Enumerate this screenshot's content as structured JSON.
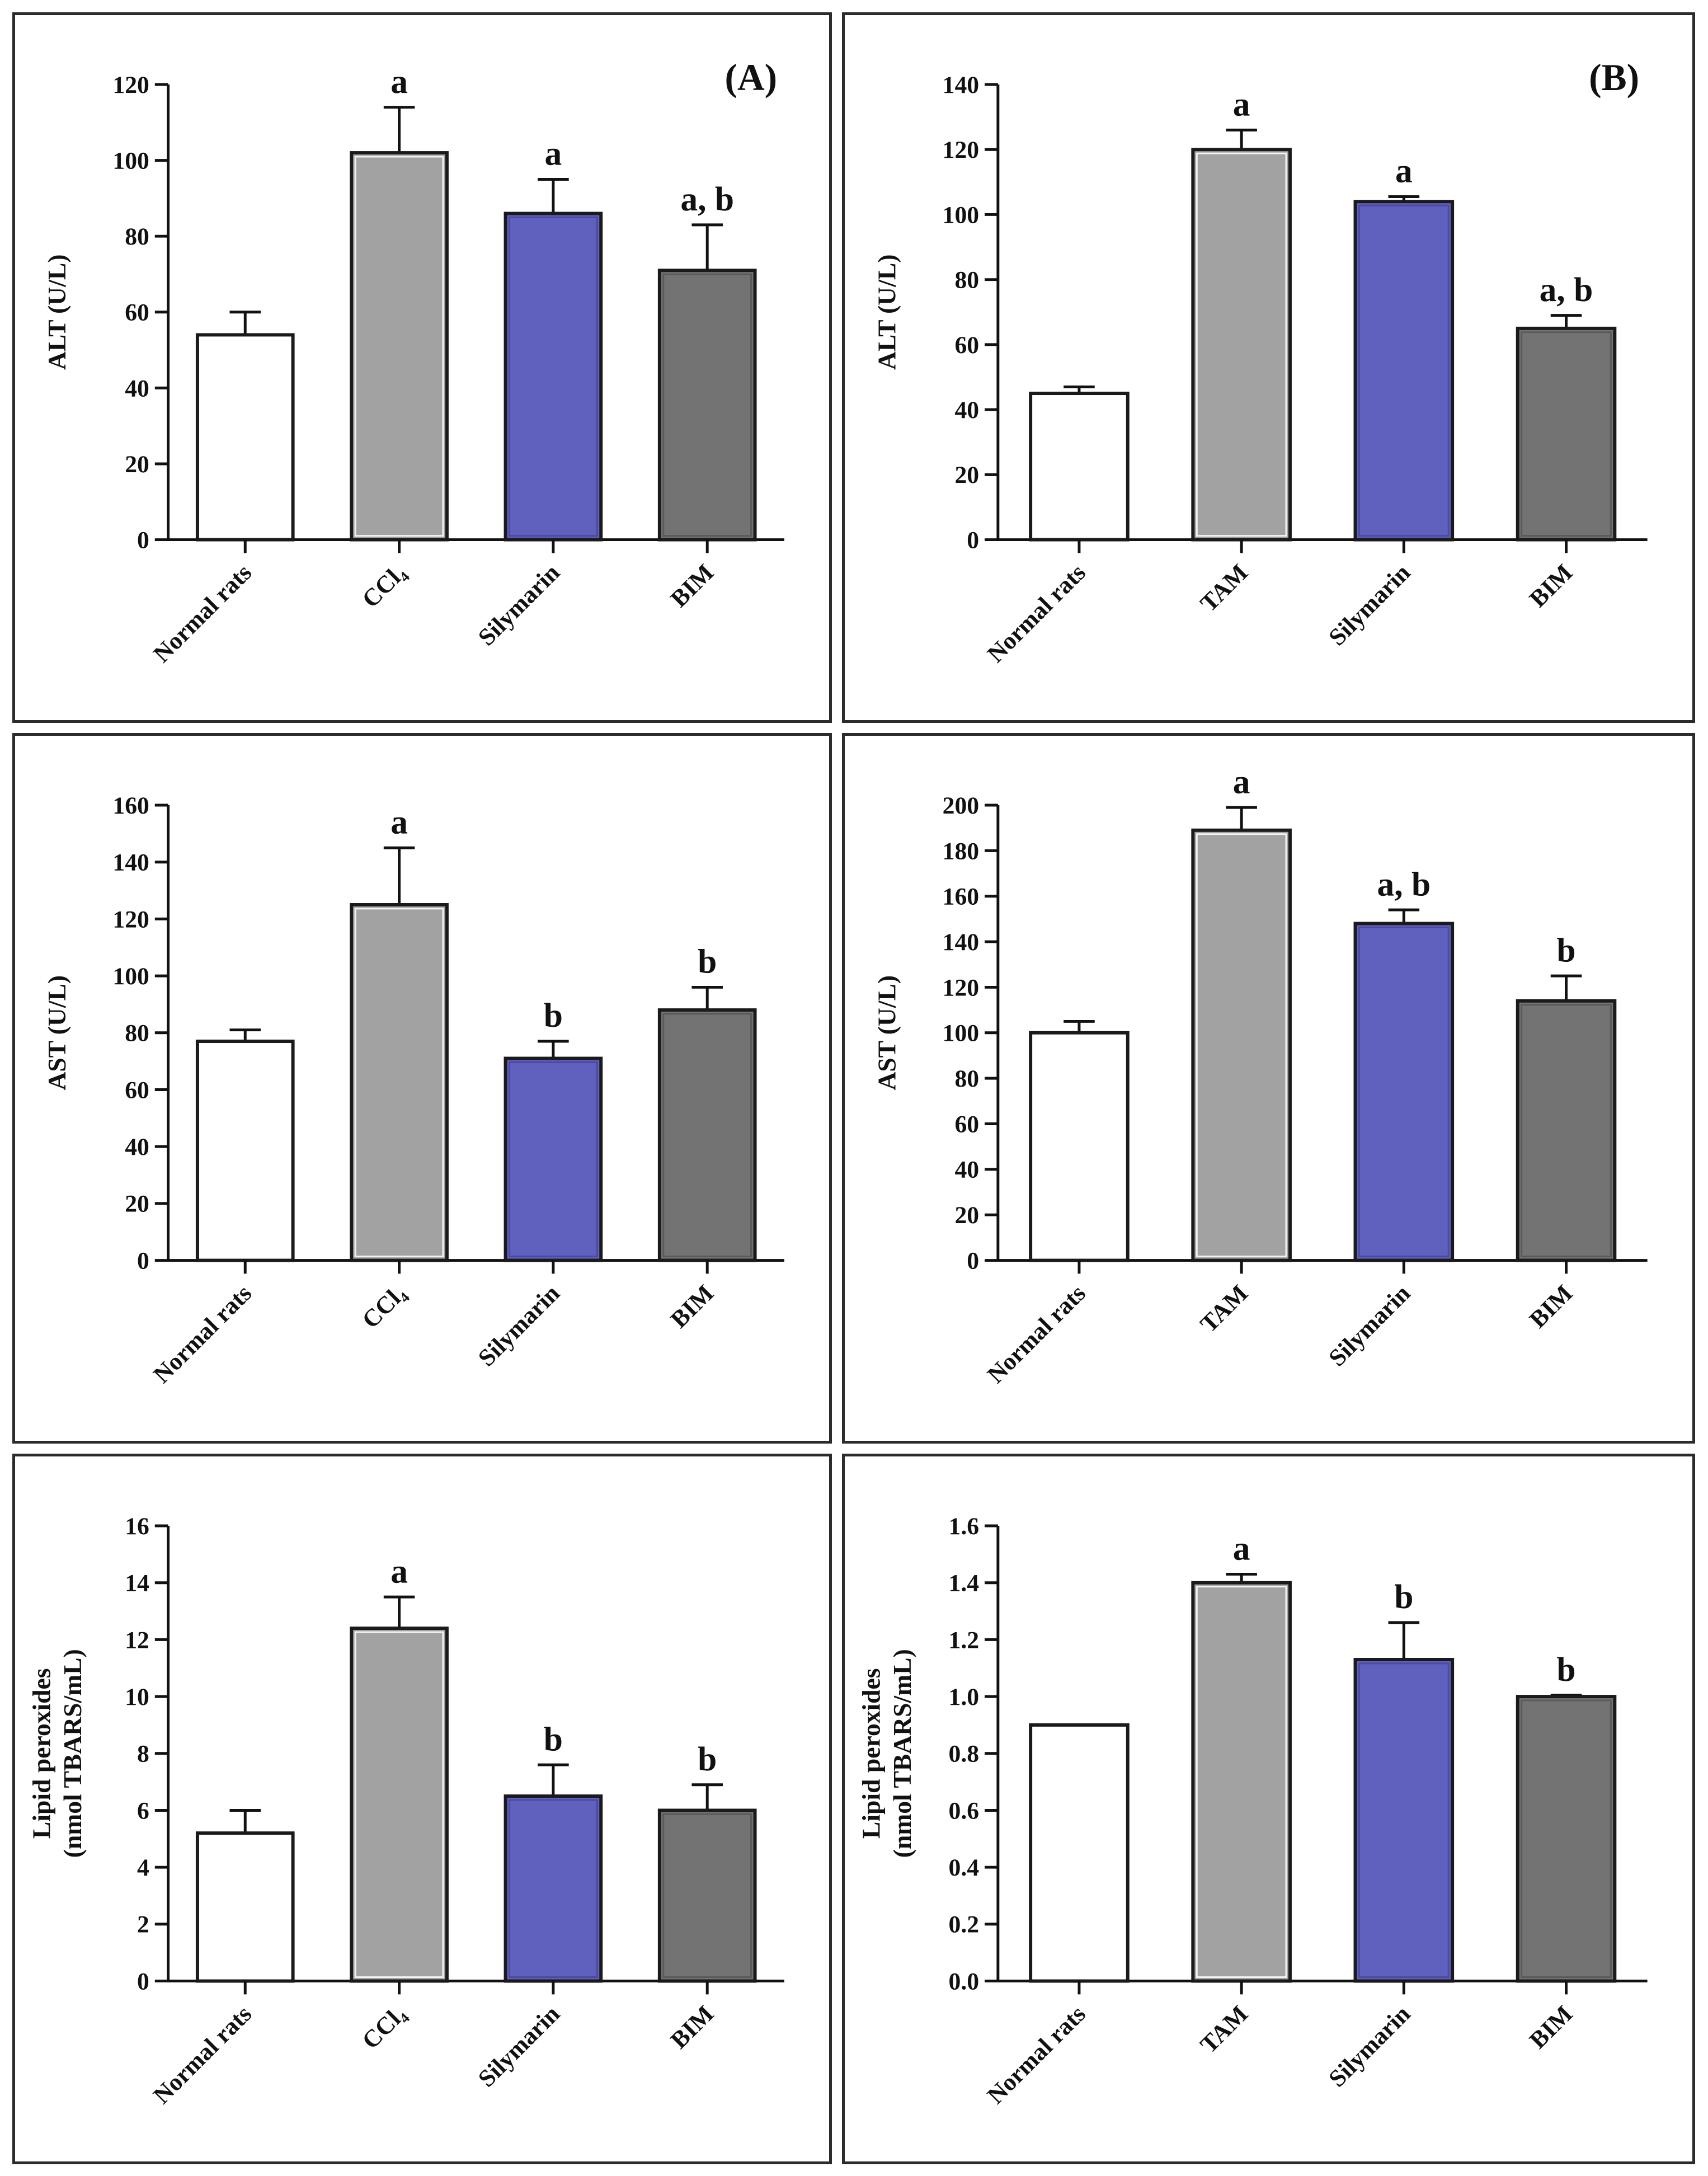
{
  "colors": {
    "normal": "#ffffff",
    "treatment": "#a2a2a2",
    "silymarin": "#6061be",
    "bim": "#737373",
    "axis": "#111111"
  },
  "chart_data": [
    {
      "id": "alt-ccl4",
      "type": "bar",
      "panel_label": "(A)",
      "ylabel": [
        "ALT (U/L)"
      ],
      "categories": [
        "Normal rats",
        "CCl₄",
        "Silymarin",
        "BIM"
      ],
      "values": [
        54,
        102,
        86,
        71
      ],
      "errors": [
        6,
        12,
        9,
        12
      ],
      "annotations": [
        "",
        "a",
        "a",
        "a, b"
      ],
      "ylim": [
        0,
        120
      ],
      "ticks": [
        0,
        20,
        40,
        60,
        80,
        100,
        120
      ],
      "decimals": 0
    },
    {
      "id": "alt-tam",
      "type": "bar",
      "panel_label": "(B)",
      "ylabel": [
        "ALT  (U/L)"
      ],
      "categories": [
        "Normal rats",
        "TAM",
        "Silymarin",
        "BIM"
      ],
      "values": [
        45,
        120,
        104,
        65
      ],
      "errors": [
        2,
        6,
        1.5,
        4
      ],
      "annotations": [
        "",
        "a",
        "a",
        "a, b"
      ],
      "ylim": [
        0,
        140
      ],
      "ticks": [
        0,
        20,
        40,
        60,
        80,
        100,
        120,
        140
      ],
      "decimals": 0
    },
    {
      "id": "ast-ccl4",
      "type": "bar",
      "panel_label": "",
      "ylabel": [
        "AST  (U/L)"
      ],
      "categories": [
        "Normal rats",
        "CCl₄",
        "Silymarin",
        "BIM"
      ],
      "values": [
        77,
        125,
        71,
        88
      ],
      "errors": [
        4,
        20,
        6,
        8
      ],
      "annotations": [
        "",
        "a",
        "b",
        "b"
      ],
      "ylim": [
        0,
        160
      ],
      "ticks": [
        0,
        20,
        40,
        60,
        80,
        100,
        120,
        140,
        160
      ],
      "decimals": 0
    },
    {
      "id": "ast-tam",
      "type": "bar",
      "panel_label": "",
      "ylabel": [
        "AST  (U/L)"
      ],
      "categories": [
        "Normal rats",
        "TAM",
        "Silymarin",
        "BIM"
      ],
      "values": [
        100,
        189,
        148,
        114
      ],
      "errors": [
        5,
        10,
        6,
        11
      ],
      "annotations": [
        "",
        "a",
        "a, b",
        "b"
      ],
      "ylim": [
        0,
        200
      ],
      "ticks": [
        0,
        20,
        40,
        60,
        80,
        100,
        120,
        140,
        160,
        180,
        200
      ],
      "decimals": 0
    },
    {
      "id": "lpo-ccl4",
      "type": "bar",
      "panel_label": "",
      "ylabel": [
        "Lipid peroxides",
        "(nmol TBARS/mL)"
      ],
      "categories": [
        "Normal rats",
        "CCl₄",
        "Silymarin",
        "BIM"
      ],
      "values": [
        5.2,
        12.4,
        6.5,
        6.0
      ],
      "errors": [
        0.8,
        1.1,
        1.1,
        0.9
      ],
      "annotations": [
        "",
        "a",
        "b",
        "b"
      ],
      "ylim": [
        0,
        16
      ],
      "ticks": [
        0,
        2,
        4,
        6,
        8,
        10,
        12,
        14,
        16
      ],
      "decimals": 0
    },
    {
      "id": "lpo-tam",
      "type": "bar",
      "panel_label": "",
      "ylabel": [
        "Lipid peroxides",
        "(nmol TBARS/mL)"
      ],
      "categories": [
        "Normal rats",
        "TAM",
        "Silymarin",
        "BIM"
      ],
      "values": [
        0.9,
        1.4,
        1.13,
        1.0
      ],
      "errors": [
        0,
        0.03,
        0.13,
        0.005
      ],
      "annotations": [
        "",
        "a",
        "b",
        "b"
      ],
      "ylim": [
        0,
        1.6
      ],
      "ticks": [
        0,
        0.2,
        0.4,
        0.6,
        0.8,
        1.0,
        1.2,
        1.4,
        1.6
      ],
      "decimals": 1
    }
  ]
}
